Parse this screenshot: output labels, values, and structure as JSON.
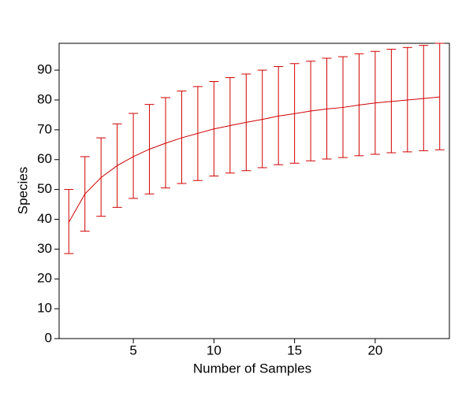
{
  "chart_data": {
    "type": "line",
    "x_label": "Number of Samples",
    "y_label": "Species",
    "x": [
      1,
      2,
      3,
      4,
      5,
      6,
      7,
      8,
      9,
      10,
      11,
      12,
      13,
      14,
      15,
      16,
      17,
      18,
      19,
      20,
      21,
      22,
      23,
      24
    ],
    "series": [
      {
        "color": "#d00000",
        "values": [
          39,
          48.5,
          54,
          58,
          61,
          63.5,
          65.5,
          67.3,
          68.8,
          70.3,
          71.4,
          72.5,
          73.5,
          74.6,
          75.4,
          76.3,
          77,
          77.5,
          78.3,
          79,
          79.5,
          80,
          80.5,
          81
        ],
        "lower": [
          28.5,
          36,
          41,
          44,
          47,
          48.5,
          50.5,
          52,
          53,
          54.5,
          55.5,
          56.3,
          57.3,
          58.3,
          58.8,
          59.6,
          60.2,
          60.7,
          61.3,
          61.8,
          62.3,
          62.6,
          63,
          63.3
        ],
        "upper": [
          50,
          61,
          67.3,
          72,
          75.5,
          78.5,
          80.8,
          83,
          84.5,
          86.2,
          87.5,
          88.7,
          90,
          91.2,
          92.2,
          93,
          94,
          94.5,
          95.5,
          96.3,
          97,
          97.6,
          98.3,
          99
        ]
      }
    ],
    "xlim": [
      0.4,
      24.6
    ],
    "xticks": [
      5,
      10,
      15,
      20
    ],
    "ylim": [
      0,
      99
    ],
    "yticks": [
      0,
      10,
      20,
      30,
      40,
      50,
      60,
      70,
      80,
      90
    ]
  }
}
